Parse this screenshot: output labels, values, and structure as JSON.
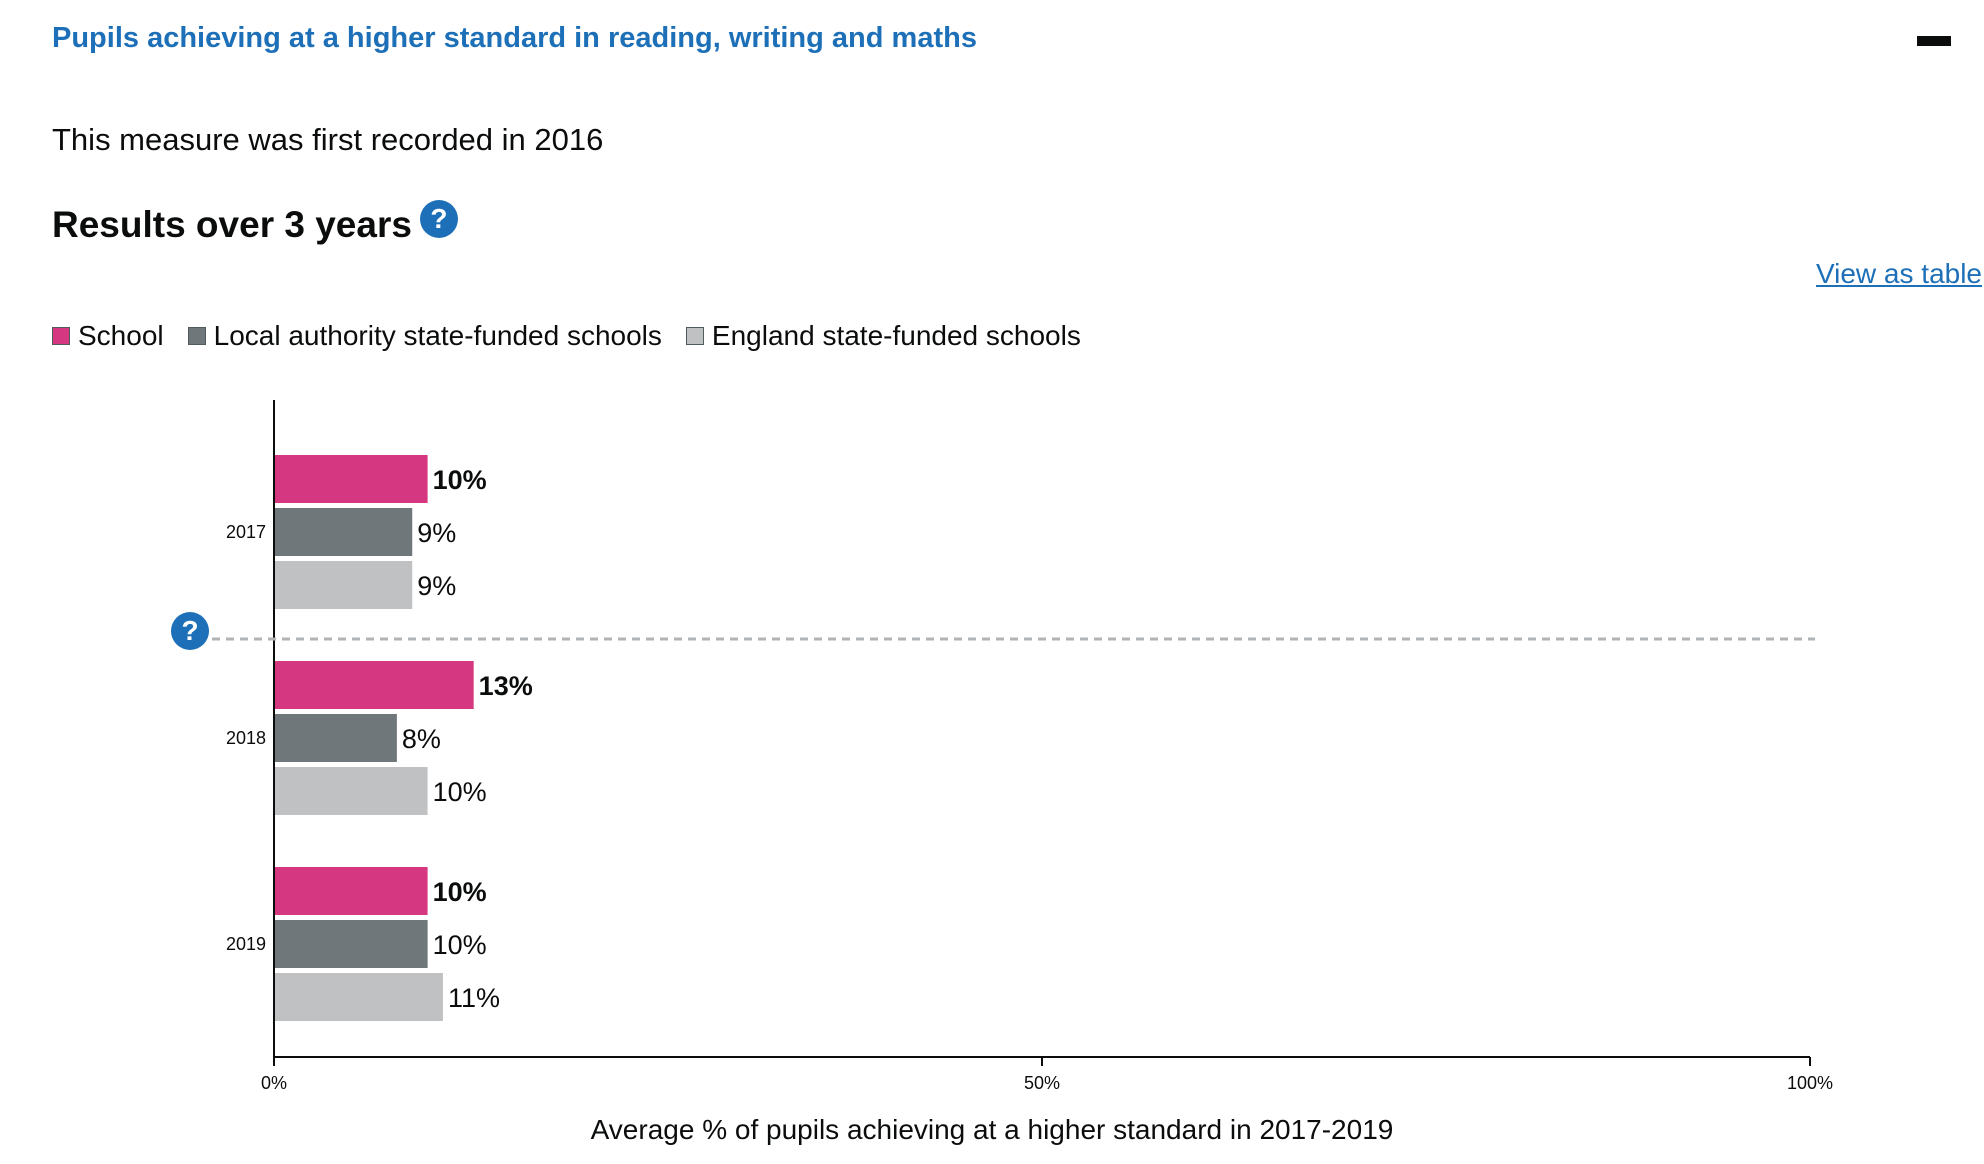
{
  "header": {
    "section_title": "Pupils achieving at a higher standard in reading, writing and maths",
    "measure_note": "This measure was first recorded in 2016",
    "results_heading": "Results over 3 years",
    "view_table_link": "View as table",
    "help_icon_glyph": "?"
  },
  "colors": {
    "school": "#d53880",
    "local_authority": "#6f777b",
    "england": "#bfc1c3",
    "link": "#1d70b8"
  },
  "chart_data": {
    "type": "bar",
    "orientation": "horizontal",
    "categories": [
      "2017",
      "2018",
      "2019"
    ],
    "series": [
      {
        "name": "School",
        "values": [
          10,
          13,
          10
        ],
        "labels": [
          "10%",
          "13%",
          "10%"
        ]
      },
      {
        "name": "Local authority state-funded schools",
        "values": [
          9,
          8,
          10
        ],
        "labels": [
          "9%",
          "8%",
          "10%"
        ]
      },
      {
        "name": "England state-funded schools",
        "values": [
          9,
          10,
          11
        ],
        "labels": [
          "9%",
          "10%",
          "11%"
        ]
      }
    ],
    "xlim": [
      0,
      100
    ],
    "xticks": [
      "0%",
      "50%",
      "100%"
    ],
    "xlabel": "Average % of pupils achieving at a higher standard in 2017-2019",
    "legend_placement": "top-left",
    "grid": false
  }
}
